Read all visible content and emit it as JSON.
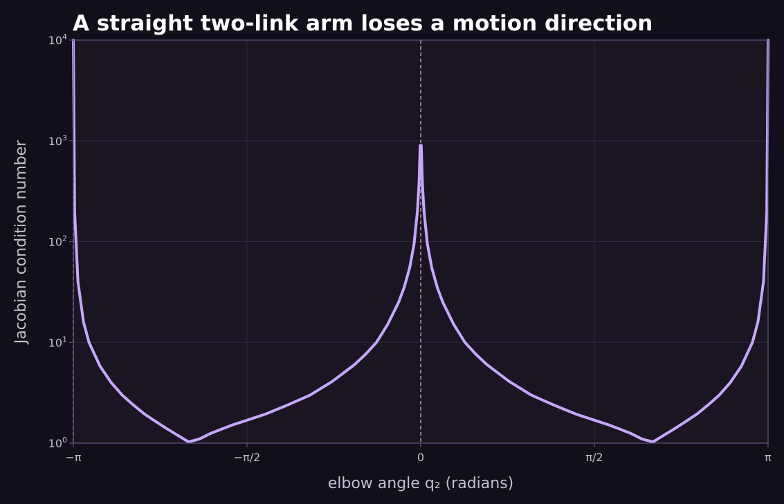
{
  "chart_data": {
    "type": "line",
    "title": "A straight two-link arm loses a motion direction",
    "xlabel": "elbow angle q₂ (radians)",
    "ylabel": "Jacobian condition number",
    "y_scale": "log",
    "xlim": [
      -3.14159,
      3.14159
    ],
    "ylim": [
      1,
      10000
    ],
    "x_ticks": [
      {
        "value": -3.14159,
        "label": "−π"
      },
      {
        "value": -1.5708,
        "label": "−π/2"
      },
      {
        "value": 0,
        "label": "0"
      },
      {
        "value": 1.5708,
        "label": "π/2"
      },
      {
        "value": 3.14159,
        "label": "π"
      }
    ],
    "y_ticks": [
      {
        "value": 1,
        "base": "10",
        "exp": "0"
      },
      {
        "value": 10,
        "base": "10",
        "exp": "1"
      },
      {
        "value": 100,
        "base": "10",
        "exp": "2"
      },
      {
        "value": 1000,
        "base": "10",
        "exp": "3"
      },
      {
        "value": 10000,
        "base": "10",
        "exp": "4"
      }
    ],
    "grid": true,
    "reference_lines_x": [
      -3.14159,
      0
    ],
    "series": [
      {
        "x": [
          -3.14159,
          -3.13,
          -3.1,
          -3.05,
          -3.0,
          -2.9,
          -2.8,
          -2.7,
          -2.6,
          -2.5,
          -2.4,
          -2.3,
          -2.2,
          -2.1,
          -2.0,
          -1.9,
          -1.8,
          -1.7,
          -1.6,
          -1.4,
          -1.2,
          -1.0,
          -0.8,
          -0.6,
          -0.5,
          -0.4,
          -0.3,
          -0.2,
          -0.15,
          -0.1,
          -0.06,
          -0.03,
          -0.015,
          -0.005,
          0.0,
          0.005,
          0.015,
          0.03,
          0.06,
          0.1,
          0.15,
          0.2,
          0.3,
          0.4,
          0.5,
          0.6,
          0.8,
          1.0,
          1.2,
          1.4,
          1.6,
          1.7,
          1.8,
          1.9,
          2.0,
          2.1,
          2.2,
          2.3,
          2.4,
          2.5,
          2.6,
          2.7,
          2.8,
          2.9,
          3.0,
          3.05,
          3.1,
          3.13,
          3.14159
        ],
        "values": [
          10000,
          200,
          40,
          16,
          10,
          5.8,
          4.0,
          3.0,
          2.4,
          1.95,
          1.65,
          1.4,
          1.2,
          1.03,
          1.1,
          1.25,
          1.38,
          1.52,
          1.65,
          1.95,
          2.4,
          3.0,
          4.1,
          6.0,
          7.6,
          10,
          15,
          25,
          35,
          55,
          95,
          200,
          380,
          900,
          900,
          900,
          380,
          200,
          95,
          55,
          35,
          25,
          15,
          10,
          7.6,
          6.0,
          4.1,
          3.0,
          2.4,
          1.95,
          1.65,
          1.52,
          1.38,
          1.25,
          1.1,
          1.03,
          1.2,
          1.4,
          1.65,
          1.95,
          2.4,
          3.0,
          4.0,
          5.8,
          10,
          16,
          40,
          200,
          10000
        ]
      }
    ],
    "colors": {
      "background": "#120e1a",
      "plot_area": "#1b1522",
      "line": "#c6a8fb",
      "reference_line": "#c98aa8",
      "grid": "#2e2840",
      "frame": "#5f5682",
      "text": "#c4bfcf",
      "title": "#ffffff"
    }
  }
}
